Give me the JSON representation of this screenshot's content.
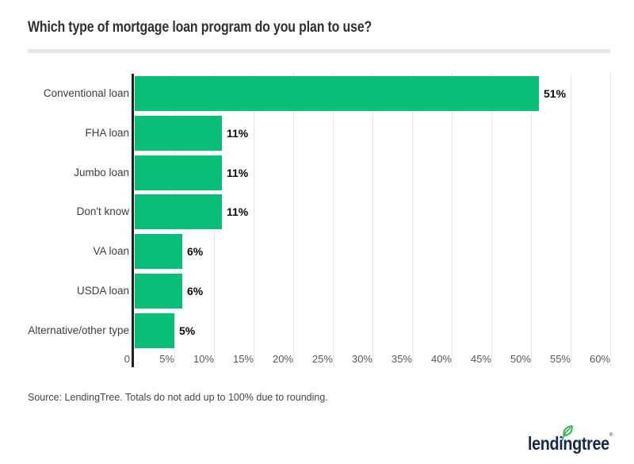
{
  "header": {
    "title": "Which type of mortgage loan program do you plan to use?"
  },
  "chart_data": {
    "type": "bar",
    "orientation": "horizontal",
    "title": "Which type of mortgage loan program do you plan to use?",
    "categories": [
      "Conventional loan",
      "FHA loan",
      "Jumbo loan",
      "Don't know",
      "VA loan",
      "USDA loan",
      "Alternative/other type"
    ],
    "values": [
      51,
      11,
      11,
      11,
      6,
      6,
      5
    ],
    "value_labels": [
      "51%",
      "11%",
      "11%",
      "11%",
      "6%",
      "6%",
      "5%"
    ],
    "x_ticks": [
      "0",
      "5%",
      "10%",
      "15%",
      "20%",
      "25%",
      "30%",
      "35%",
      "40%",
      "45%",
      "50%",
      "55%",
      "60%"
    ],
    "xlim": [
      0,
      60
    ],
    "xlabel": "",
    "ylabel": "",
    "grid": "vertical-light-gray",
    "legend": "none",
    "bar_color": "#0bbe78"
  },
  "footer": {
    "source_note": "Source: LendingTree. Totals do not add up to 100% due to rounding."
  },
  "logo": {
    "text": "lendingtree",
    "mark": "®",
    "leaf_icon": "leaf-icon"
  },
  "colors": {
    "bar_green": "#0bbe78",
    "leaf_green": "#2fb34a",
    "logo_navy": "#132b47",
    "axis_dark": "#1f1f1f",
    "gridline": "#e8e8e8",
    "divider": "#e6e6e6",
    "title_text": "#303030",
    "label_text": "#3d3d3d",
    "tick_text": "#595959"
  }
}
